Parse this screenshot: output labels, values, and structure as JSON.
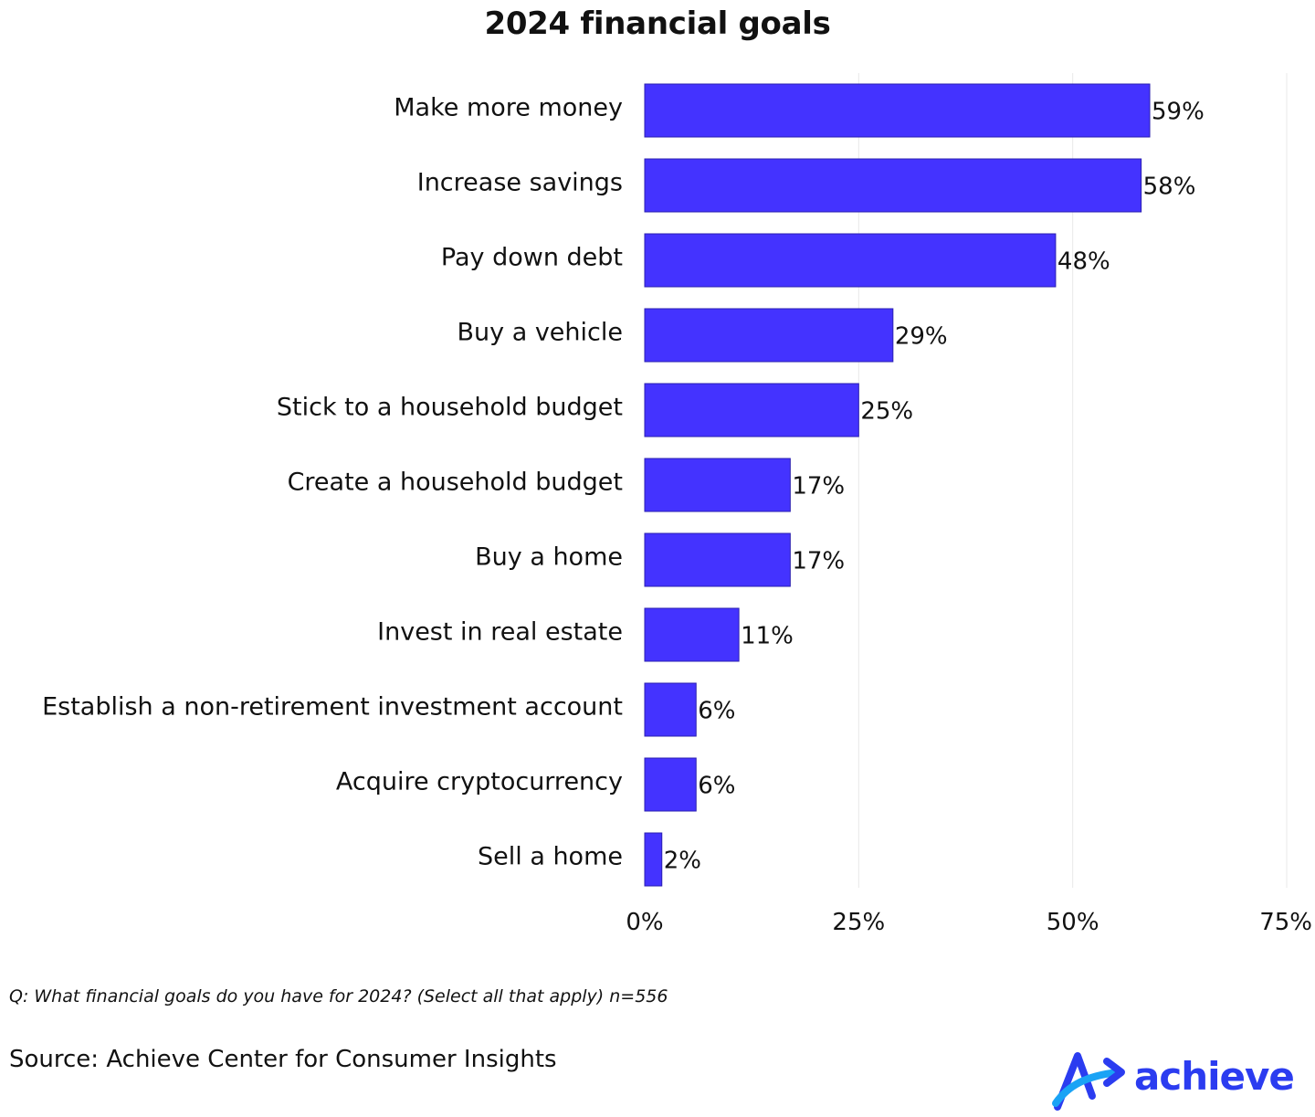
{
  "chart_data": {
    "type": "bar",
    "orientation": "horizontal",
    "title": "2024 financial goals",
    "categories": [
      "Make more money",
      "Increase savings",
      "Pay down debt",
      "Buy a vehicle",
      "Stick to a household budget",
      "Create a household budget",
      "Buy a home",
      "Invest in real estate",
      "Establish a non-retirement investment account",
      "Acquire cryptocurrency",
      "Sell a home"
    ],
    "values": [
      59,
      58,
      48,
      29,
      25,
      17,
      17,
      11,
      6,
      6,
      2
    ],
    "value_labels": [
      "59%",
      "58%",
      "48%",
      "29%",
      "25%",
      "17%",
      "17%",
      "11%",
      "6%",
      "6%",
      "2%"
    ],
    "xlim": [
      0,
      75
    ],
    "xticks": [
      0,
      25,
      50,
      75
    ],
    "xtick_labels": [
      "0%",
      "25%",
      "50%",
      "75%"
    ],
    "xlabel": "",
    "ylabel": "",
    "grid": "vertical",
    "legend": "none",
    "bar_color": "#4433FF",
    "grid_color": "#E8E8E8"
  },
  "footer": {
    "question": "Q: What financial goals do you have for 2024? (Select all that apply) n=556",
    "source": "Source: Achieve Center for Consumer Insights"
  },
  "brand": {
    "name": "achieve",
    "icon": "achieve-arrow-icon",
    "name_color": "#2B3CF0",
    "mark_color_dark": "#2B3CF0",
    "mark_color_light": "#1AA3F5"
  }
}
